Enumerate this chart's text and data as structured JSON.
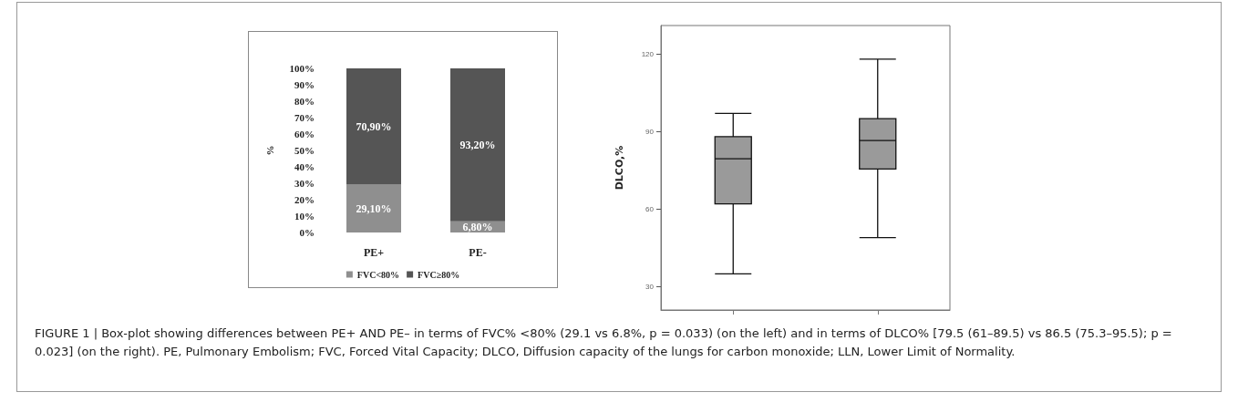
{
  "chart_data": [
    {
      "type": "bar",
      "stacked": true,
      "categories": [
        "PE+",
        "PE-"
      ],
      "ylabel": "%",
      "ylim": [
        0,
        100
      ],
      "yticks": [
        {
          "value": 0,
          "label": "0%"
        },
        {
          "value": 10,
          "label": "10%"
        },
        {
          "value": 20,
          "label": "20%"
        },
        {
          "value": 30,
          "label": "30%"
        },
        {
          "value": 40,
          "label": "40%"
        },
        {
          "value": 50,
          "label": "50%"
        },
        {
          "value": 60,
          "label": "60%"
        },
        {
          "value": 70,
          "label": "70%"
        },
        {
          "value": 80,
          "label": "80%"
        },
        {
          "value": 90,
          "label": "90%"
        },
        {
          "value": 100,
          "label": "100%"
        }
      ],
      "series": [
        {
          "name": "FVC<80%",
          "color": "#8f8f8f",
          "values": [
            29.1,
            6.8
          ],
          "value_labels": [
            "29,10%",
            "6,80%"
          ]
        },
        {
          "name": "FVC≥80%",
          "color": "#555555",
          "values": [
            70.9,
            93.2
          ],
          "value_labels": [
            "70,90%",
            "93,20%"
          ]
        }
      ],
      "legend": "bottom",
      "grid": false,
      "annotations": [
        "FIGURE 1 | Box-plot showing differences between PE+ AND PE– in terms of FVC% <80% (29.1 vs 6.8%, p = 0.033) (on the left) and in terms of DLCO% [79.5 (61–89.5) vs 86.5 (75.3–95.5); p = 0.023] (on the right). PE, Pulmonary Embolism; FVC, Forced Vital Capacity; DLCO, Diffusion capacity of the lungs for carbon monoxide; LLN, Lower Limit of Normality."
      ]
    },
    {
      "type": "box",
      "categories": [
        null,
        null
      ],
      "ylabel": "DLCO,%",
      "ylim": [
        21,
        131
      ],
      "yticks": [
        30,
        60,
        90,
        120
      ],
      "tick_labels": "y",
      "grid": false,
      "series": [
        {
          "color": "#9a9a9a",
          "boxes": [
            {
              "low": 35,
              "q1": 62,
              "median": 79.5,
              "q3": 88,
              "high": 97
            },
            {
              "low": 49,
              "q1": 75.5,
              "median": 86.5,
              "q3": 95,
              "high": 118
            }
          ]
        }
      ]
    }
  ]
}
